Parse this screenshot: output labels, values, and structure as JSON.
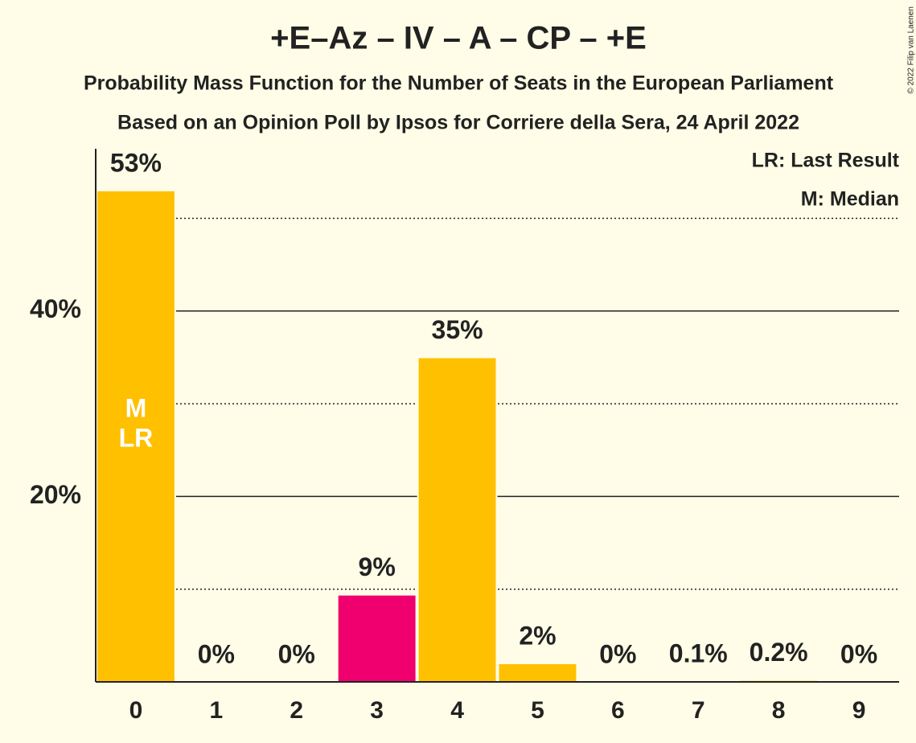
{
  "chart_data": {
    "type": "bar",
    "title": "+E–Az – IV – A – CP – +E",
    "subtitle": "Probability Mass Function for the Number of Seats in the European Parliament",
    "subtitle2": "Based on an Opinion Poll by Ipsos for Corriere della Sera, 24 April 2022",
    "categories": [
      0,
      1,
      2,
      3,
      4,
      5,
      6,
      7,
      8,
      9
    ],
    "values": [
      53,
      0,
      0,
      9.4,
      35,
      2,
      0,
      0.1,
      0.2,
      0
    ],
    "value_labels": [
      "53%",
      "0%",
      "0%",
      "9%",
      "35%",
      "2%",
      "0%",
      "0.1%",
      "0.2%",
      "0%"
    ],
    "colors": [
      "#ffc000",
      "#ffc000",
      "#ffc000",
      "#f0006e",
      "#ffc000",
      "#ffc000",
      "#ffc000",
      "#ffc000",
      "#ffc000",
      "#ffc000"
    ],
    "ylim": [
      0,
      57.5
    ],
    "yticks": [
      {
        "value": 20,
        "label": "20%"
      },
      {
        "value": 40,
        "label": "40%"
      }
    ],
    "minor_yticks": [
      10,
      30,
      50
    ],
    "grid": true,
    "median": 0,
    "median_label": "M",
    "last_result": 0,
    "last_result_label": "LR",
    "legend": [
      "LR: Last Result",
      "M: Median"
    ],
    "copyright": "© 2022 Filip van Laenen"
  }
}
